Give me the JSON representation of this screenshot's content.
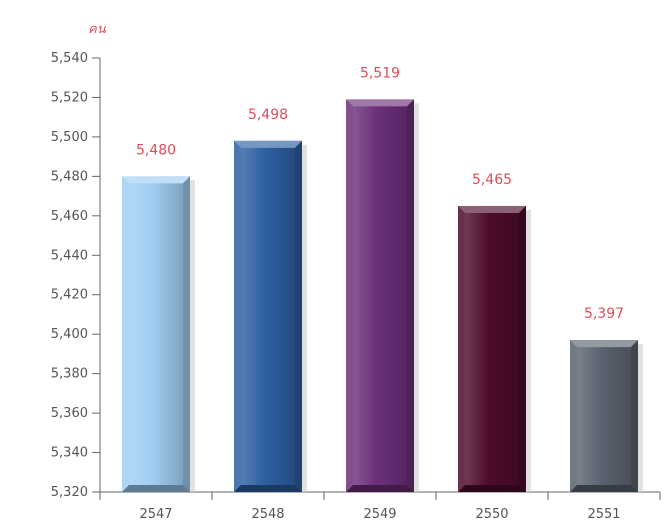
{
  "chart_data": {
    "type": "bar",
    "unit_label": "คน",
    "categories": [
      "2547",
      "2548",
      "2549",
      "2550",
      "2551"
    ],
    "values": [
      5480,
      5498,
      5519,
      5465,
      5397
    ],
    "value_labels": [
      "5,480",
      "5,498",
      "5,519",
      "5,465",
      "5,397"
    ],
    "ylim": [
      5320,
      5540
    ],
    "y_ticks": [
      5320,
      5340,
      5360,
      5380,
      5400,
      5420,
      5440,
      5460,
      5480,
      5500,
      5520,
      5540
    ],
    "y_tick_labels": [
      "5,320",
      "5,340",
      "5,360",
      "5,380",
      "5,400",
      "5,420",
      "5,440",
      "5,460",
      "5,480",
      "5,500",
      "5,520",
      "5,540"
    ],
    "grid": false,
    "bar_colors": [
      "#9fcdf2",
      "#2e5fa3",
      "#6c2f7a",
      "#4d0c2c",
      "#5c6270"
    ],
    "label_color": "#d8505a",
    "unit_color": "#d8505a"
  }
}
